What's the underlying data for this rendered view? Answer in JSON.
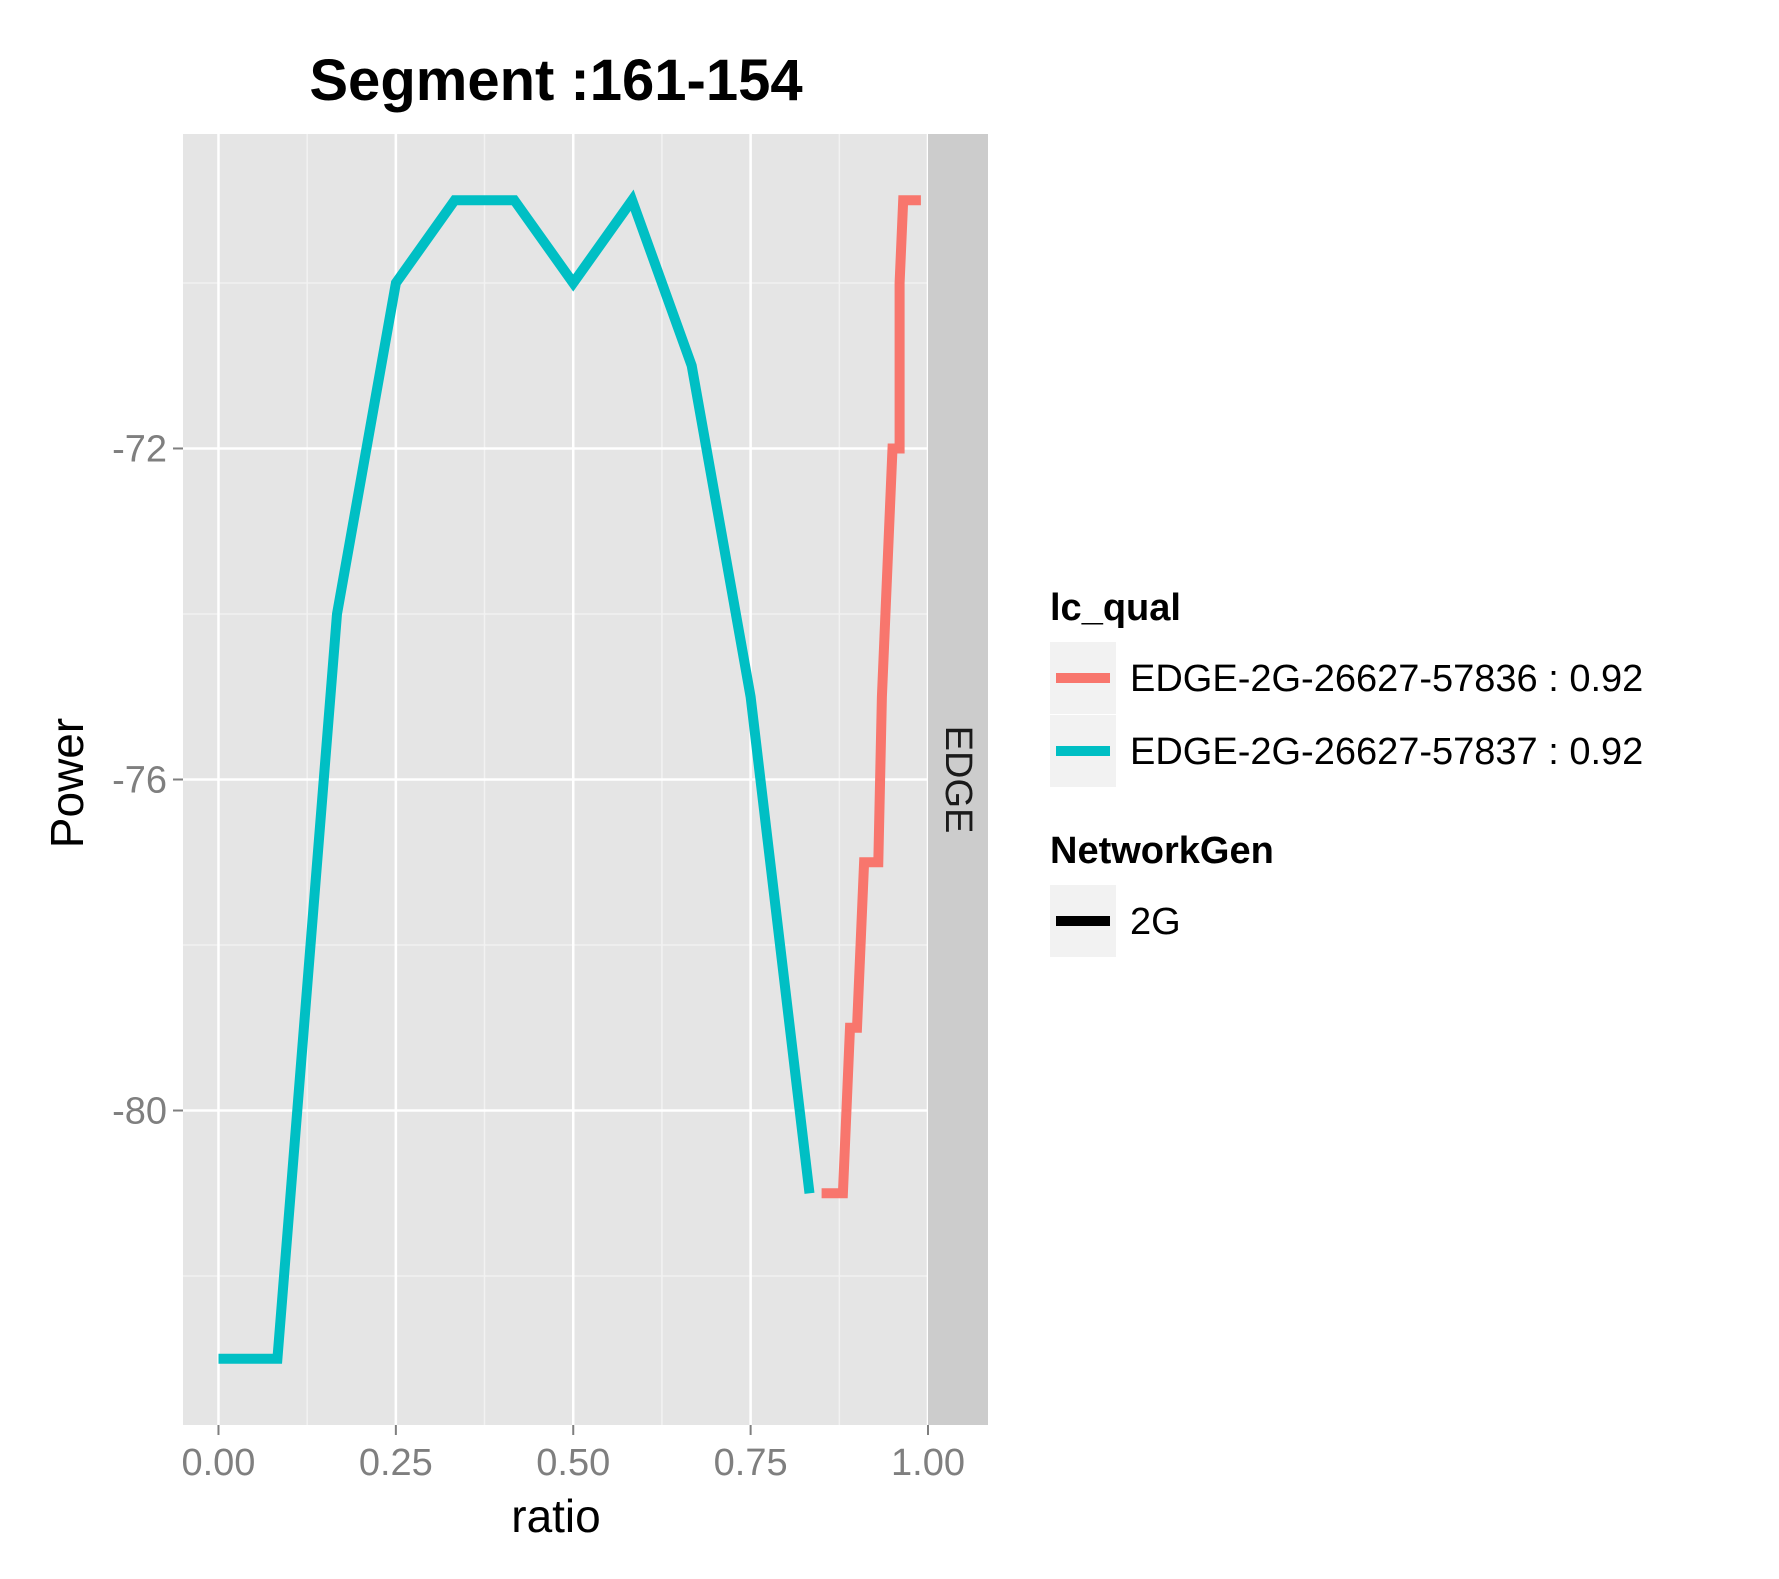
{
  "chart_data": {
    "type": "line",
    "title": "Segment :161-154",
    "xlabel": "ratio",
    "ylabel": "Power",
    "xlim": [
      -0.05,
      1.0
    ],
    "ylim": [
      -83.8,
      -68.2
    ],
    "x_ticks": [
      0.0,
      0.25,
      0.5,
      0.75,
      1.0
    ],
    "x_tick_labels": [
      "0.00",
      "0.25",
      "0.50",
      "0.75",
      "1.00"
    ],
    "y_ticks": [
      -72,
      -76,
      -80
    ],
    "y_tick_labels": [
      "-72",
      "-76",
      "-80"
    ],
    "grid": true,
    "background": "#e5e5e5",
    "facet_label": "EDGE",
    "facet_strip_color": "#cccccc",
    "legend_position": "right",
    "legends": [
      {
        "title": "lc_qual",
        "entries": [
          {
            "label": "EDGE-2G-26627-57836 : 0.92",
            "color": "#f8766d"
          },
          {
            "label": "EDGE-2G-26627-57837 : 0.92",
            "color": "#00bfc4"
          }
        ]
      },
      {
        "title": "NetworkGen",
        "entries": [
          {
            "label": "2G",
            "color": "#000000"
          }
        ]
      }
    ],
    "series": [
      {
        "name": "EDGE-2G-26627-57836 : 0.92",
        "color": "#f8766d",
        "x": [
          0.85,
          0.88,
          0.89,
          0.9,
          0.91,
          0.915,
          0.93,
          0.935,
          0.95,
          0.96,
          0.96,
          0.965,
          0.97,
          0.99
        ],
        "y": [
          -81,
          -81,
          -79,
          -79,
          -77,
          -77,
          -77,
          -75,
          -72,
          -72,
          -70,
          -69,
          -69,
          -69
        ]
      },
      {
        "name": "EDGE-2G-26627-57837 : 0.92",
        "color": "#00bfc4",
        "x": [
          0.0,
          0.083,
          0.167,
          0.25,
          0.333,
          0.417,
          0.5,
          0.583,
          0.667,
          0.75,
          0.833
        ],
        "y": [
          -83,
          -83,
          -74,
          -70,
          -69,
          -69,
          -70,
          -69,
          -71,
          -75,
          -81
        ]
      }
    ]
  }
}
